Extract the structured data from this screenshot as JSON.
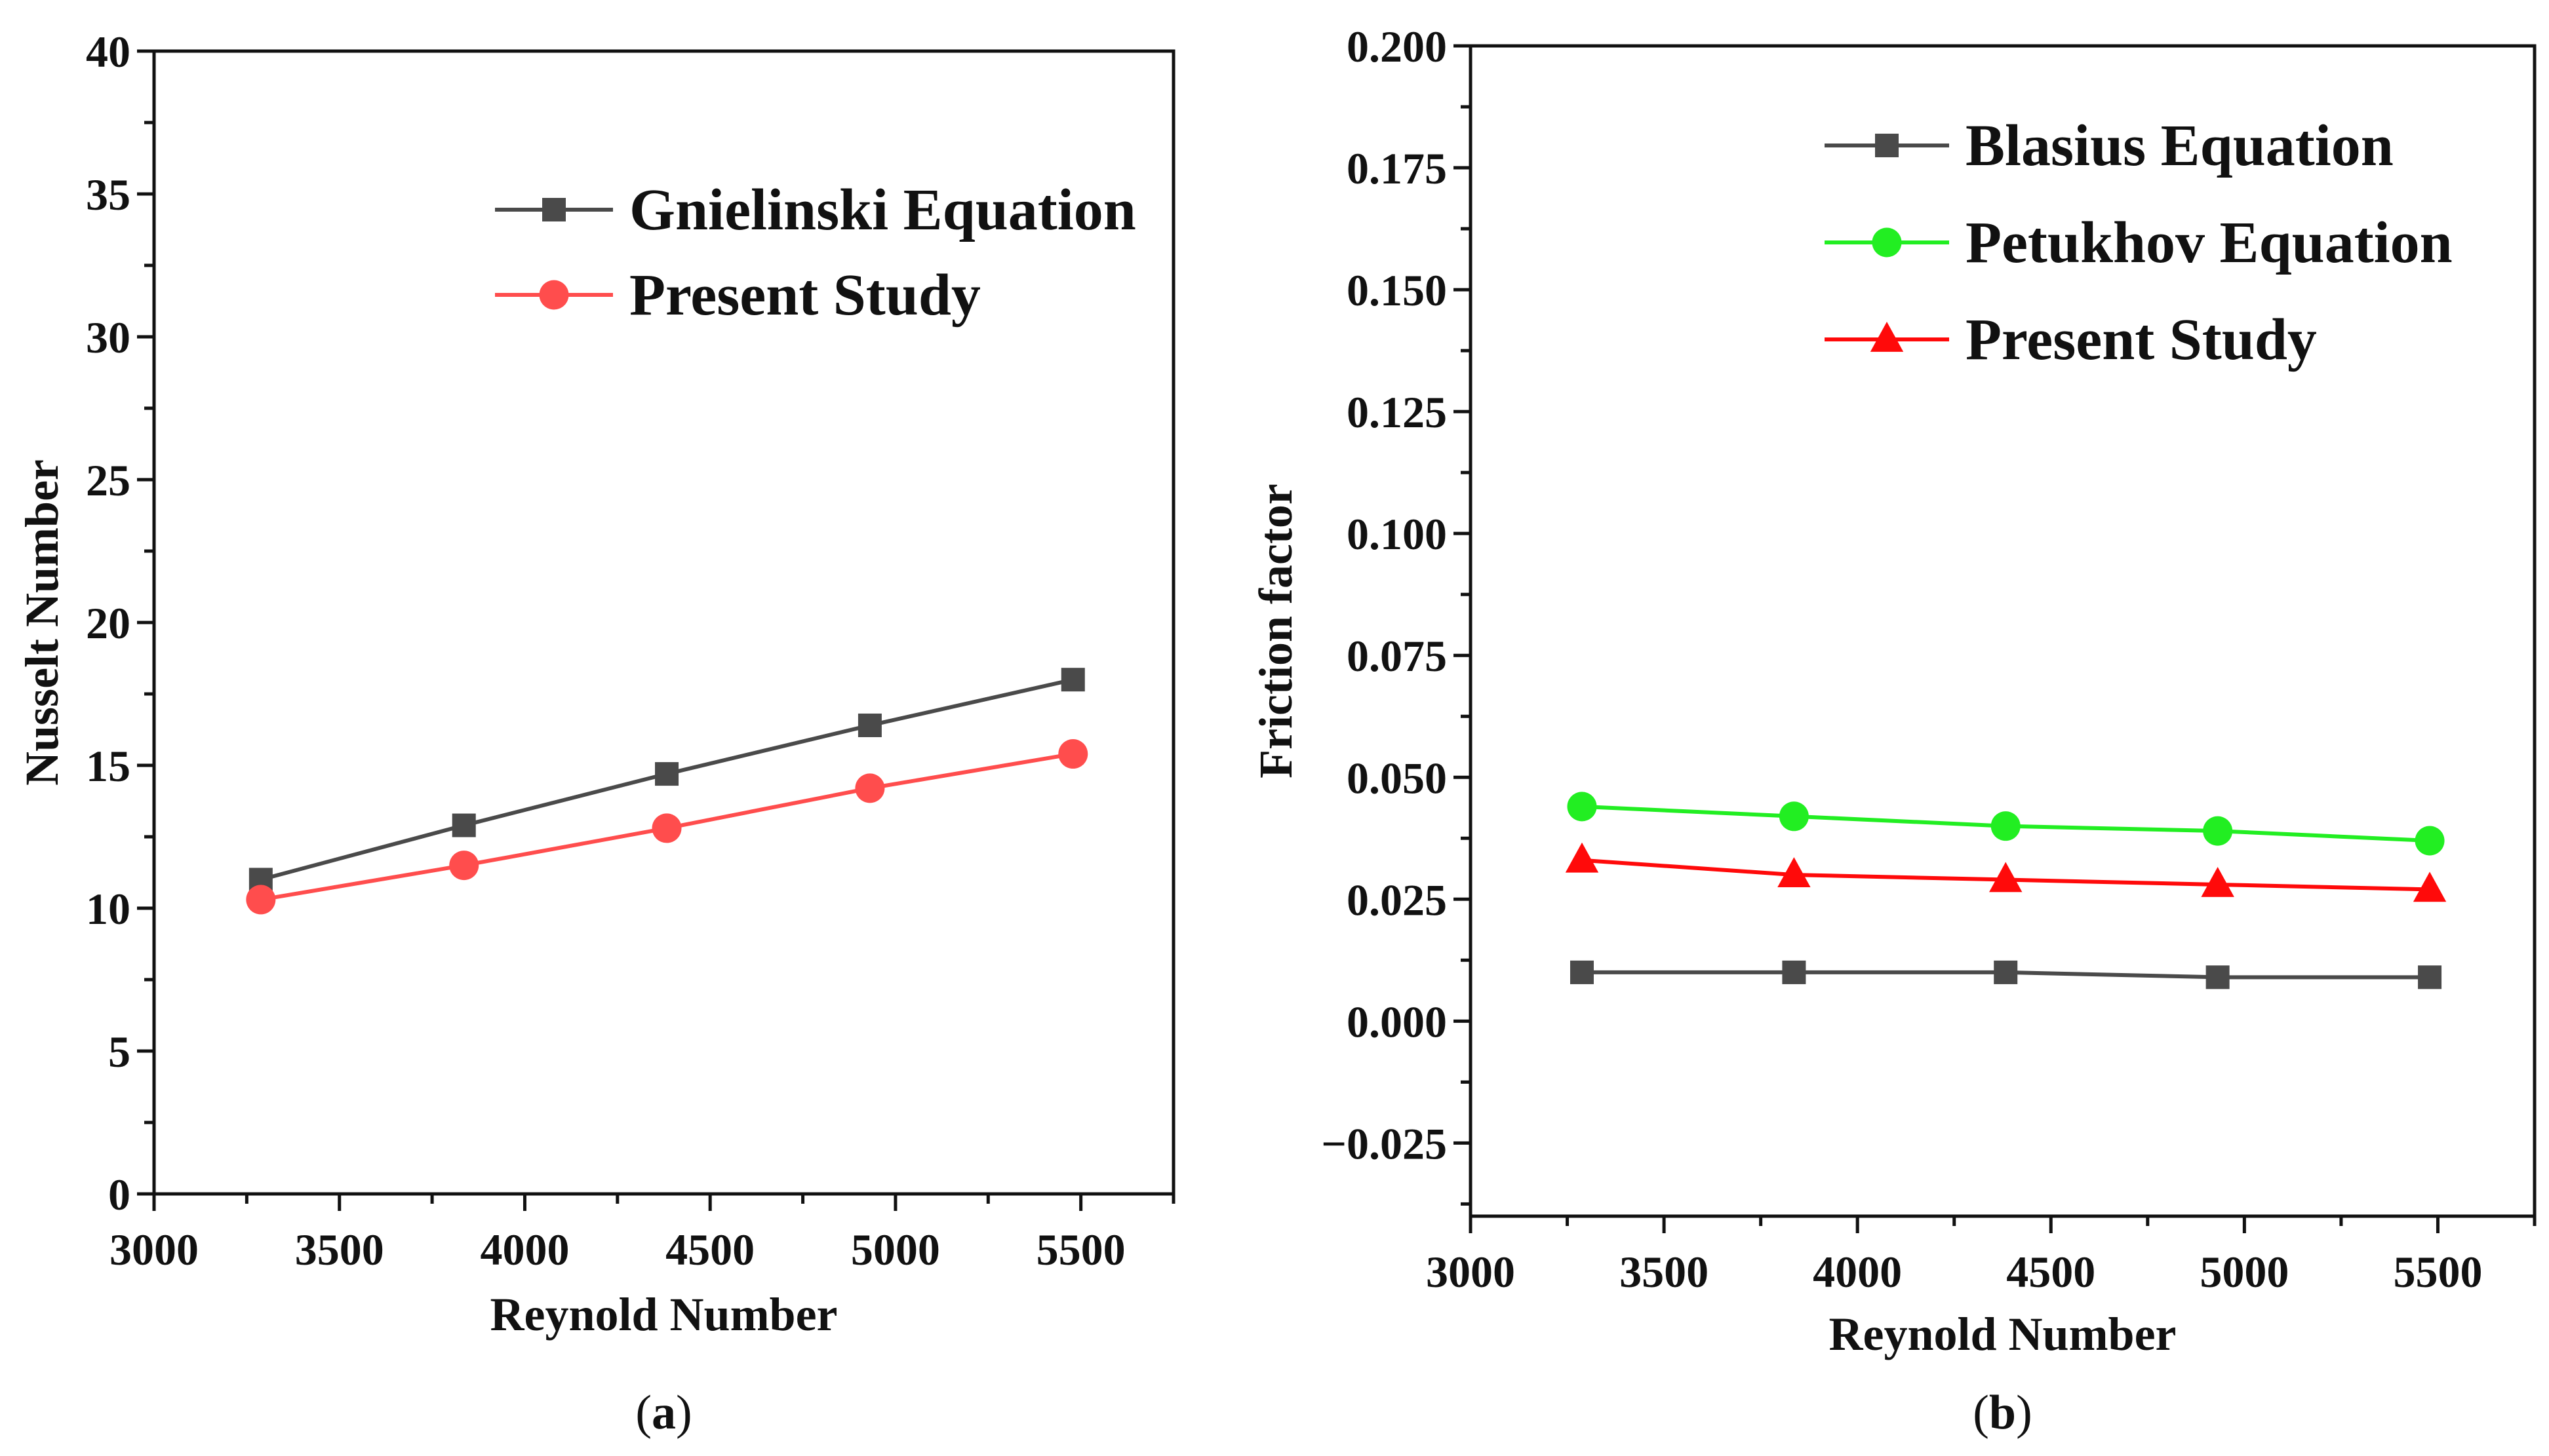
{
  "chart_data": [
    {
      "type": "line",
      "panel": "a",
      "caption": {
        "open": "(",
        "letter": "a",
        "close": ")"
      },
      "title": "",
      "xlabel": "Reynold Number",
      "ylabel": "Nusselt Number",
      "xlim": [
        3000,
        5750
      ],
      "ylim": [
        0,
        40
      ],
      "xticks": [
        3000,
        3500,
        4000,
        4500,
        5000,
        5500
      ],
      "yticks": [
        0,
        5,
        10,
        15,
        20,
        25,
        30,
        35,
        40
      ],
      "ytick_labels": [
        "0",
        "5",
        "10",
        "15",
        "20",
        "25",
        "30",
        "35",
        "40"
      ],
      "legend_position": "top-right",
      "series": [
        {
          "name": "Gnielinski Equation",
          "color": "#4a4a4a",
          "marker": "square",
          "x": [
            3288,
            3836,
            4383,
            4931,
            5479
          ],
          "y": [
            11.0,
            12.9,
            14.7,
            16.4,
            18.0
          ]
        },
        {
          "name": "Present Study",
          "color": "#ff4d4d",
          "marker": "circle",
          "x": [
            3288,
            3836,
            4383,
            4931,
            5479
          ],
          "y": [
            10.3,
            11.5,
            12.8,
            14.2,
            15.4
          ]
        }
      ]
    },
    {
      "type": "line",
      "panel": "b",
      "caption": {
        "open": "(",
        "letter": "b",
        "close": ")"
      },
      "title": "",
      "xlabel": "Reynold Number",
      "ylabel": "Friction factor",
      "xlim": [
        3000,
        5750
      ],
      "ylim": [
        -0.04,
        0.2
      ],
      "xticks": [
        3000,
        3500,
        4000,
        4500,
        5000,
        5500
      ],
      "yticks": [
        -0.025,
        0.0,
        0.025,
        0.05,
        0.075,
        0.1,
        0.125,
        0.15,
        0.175,
        0.2
      ],
      "ytick_labels": [
        "−0.025",
        "0.000",
        "0.025",
        "0.050",
        "0.075",
        "0.100",
        "0.125",
        "0.150",
        "0.175",
        "0.200"
      ],
      "legend_position": "top-right",
      "series": [
        {
          "name": "Blasius Equation",
          "color": "#4a4a4a",
          "marker": "square",
          "x": [
            3288,
            3836,
            4383,
            4931,
            5479
          ],
          "y": [
            0.01,
            0.01,
            0.01,
            0.009,
            0.009
          ]
        },
        {
          "name": "Petukhov Equation",
          "color": "#22ee22",
          "marker": "circle",
          "x": [
            3288,
            3836,
            4383,
            4931,
            5479
          ],
          "y": [
            0.044,
            0.042,
            0.04,
            0.039,
            0.037
          ]
        },
        {
          "name": "Present Study",
          "color": "#ff0a0a",
          "marker": "triangle",
          "x": [
            3288,
            3836,
            4383,
            4931,
            5479
          ],
          "y": [
            0.033,
            0.03,
            0.029,
            0.028,
            0.027
          ]
        }
      ]
    }
  ]
}
